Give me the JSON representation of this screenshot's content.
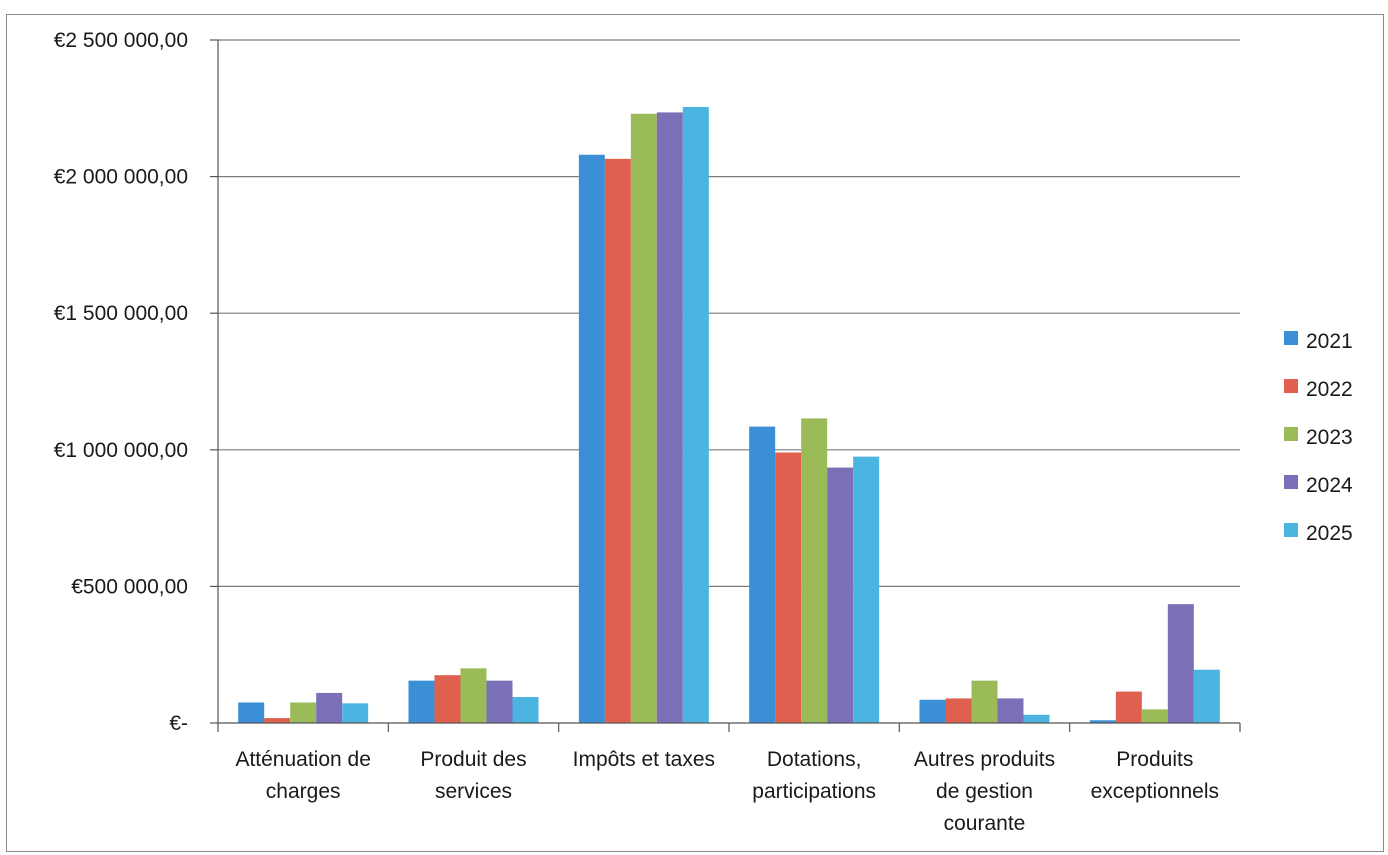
{
  "chart_data": {
    "type": "bar",
    "title": "",
    "xlabel": "",
    "ylabel": "",
    "categories": [
      [
        "Atténuation de",
        "charges"
      ],
      [
        "Produit des",
        "services"
      ],
      [
        "Impôts et taxes"
      ],
      [
        "Dotations,",
        "participations"
      ],
      [
        "Autres produits",
        "de gestion",
        "courante"
      ],
      [
        "Produits",
        "exceptionnels"
      ]
    ],
    "series": [
      {
        "name": "2021",
        "color": "#3a8fd6",
        "values": [
          75000,
          155000,
          2080000,
          1085000,
          85000,
          10000
        ]
      },
      {
        "name": "2022",
        "color": "#e0604f",
        "values": [
          18000,
          175000,
          2065000,
          990000,
          90000,
          115000
        ]
      },
      {
        "name": "2023",
        "color": "#9bbb59",
        "values": [
          75000,
          200000,
          2230000,
          1115000,
          155000,
          50000
        ]
      },
      {
        "name": "2024",
        "color": "#7b70b8",
        "values": [
          110000,
          155000,
          2235000,
          935000,
          90000,
          435000
        ]
      },
      {
        "name": "2025",
        "color": "#4bb4e0",
        "values": [
          72000,
          95000,
          2255000,
          975000,
          30000,
          195000
        ]
      }
    ],
    "ylim": [
      0,
      2500000
    ],
    "yticks": [
      0,
      500000,
      1000000,
      1500000,
      2000000,
      2500000
    ],
    "ytick_labels": [
      "€-",
      "€500 000,00",
      "€1 000 000,00",
      "€1 500 000,00",
      "€2 000 000,00",
      "€2 500 000,00"
    ],
    "grid": true,
    "legend_position": "right"
  }
}
